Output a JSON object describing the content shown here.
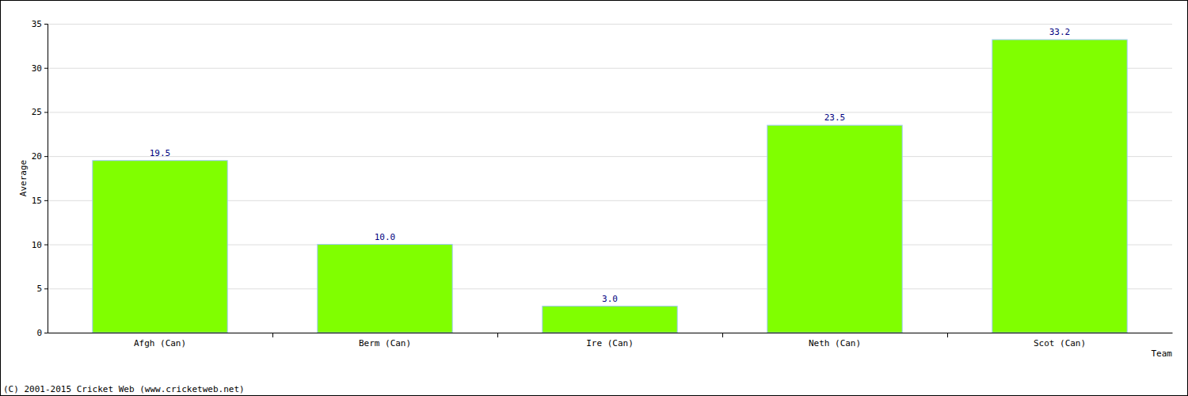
{
  "chart_data": {
    "type": "bar",
    "x_label": "Team",
    "y_label": "Average",
    "categories": [
      "Afgh (Can)",
      "Berm (Can)",
      "Ire (Can)",
      "Neth (Can)",
      "Scot (Can)"
    ],
    "values": [
      19.5,
      10.0,
      3.0,
      23.5,
      33.2
    ],
    "value_labels": [
      "19.5",
      "10.0",
      "3.0",
      "23.5",
      "33.2"
    ],
    "data_labels": true,
    "color": "#80ff00",
    "ylim": [
      0,
      35
    ],
    "yticks": [
      0,
      5,
      10,
      15,
      20,
      25,
      30,
      35
    ],
    "grid": true,
    "annotations": [
      "(C) 2001-2015 Cricket Web (www.cricketweb.net)"
    ]
  }
}
